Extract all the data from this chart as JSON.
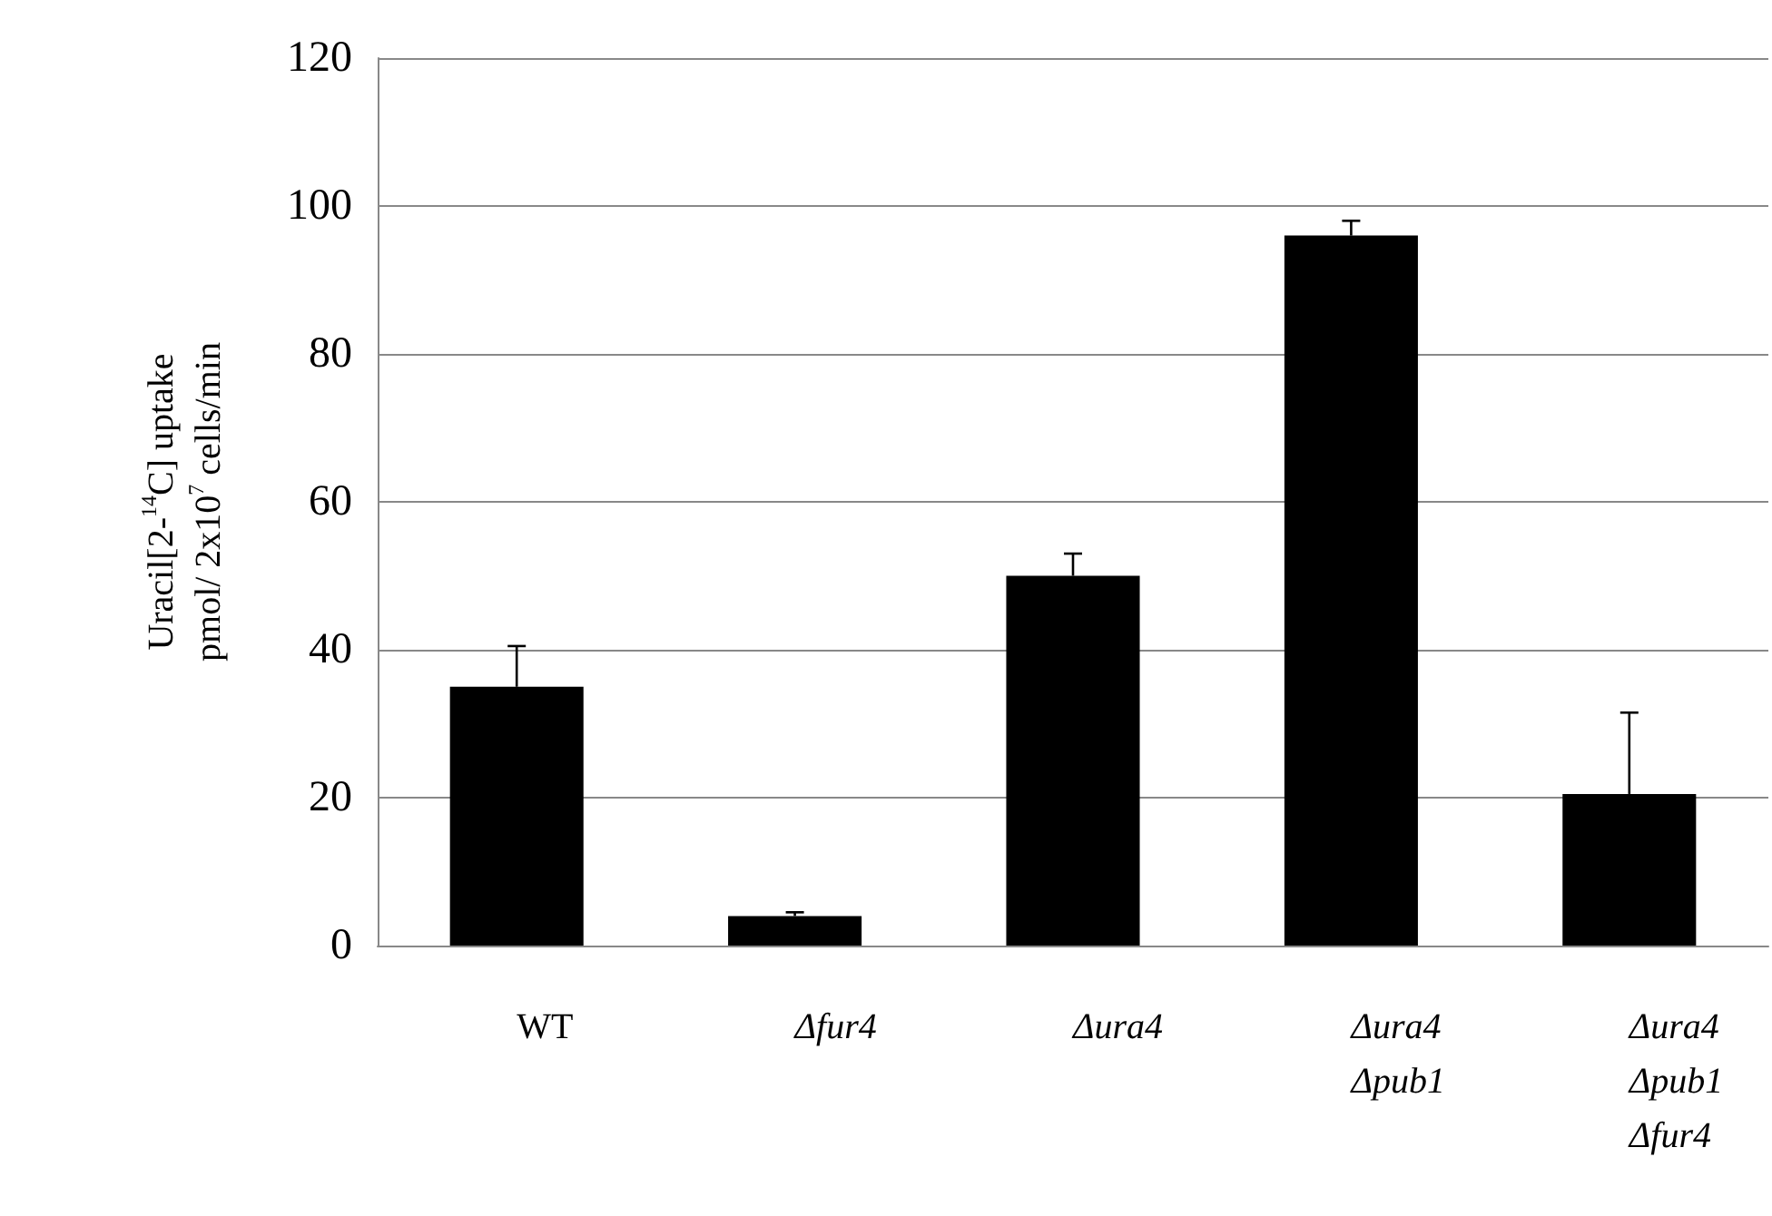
{
  "chart_data": {
    "type": "bar",
    "ylabel": "Uracil[2-$^{14}$C] uptake\npmol/ 2x10$^{7}$ cells/min",
    "categories": [
      "WT",
      "Δfur4",
      "Δura4",
      "Δura4\nΔpub1",
      "Δura4\nΔpub1\nΔfur4"
    ],
    "values": [
      35,
      4,
      50,
      96,
      20.5
    ],
    "errors": [
      5.5,
      0.5,
      3,
      2,
      11
    ],
    "color": "#000000",
    "ylim": [
      0,
      120
    ],
    "yticks": [
      0,
      20,
      40,
      60,
      80,
      100,
      120
    ],
    "grid": "y"
  }
}
